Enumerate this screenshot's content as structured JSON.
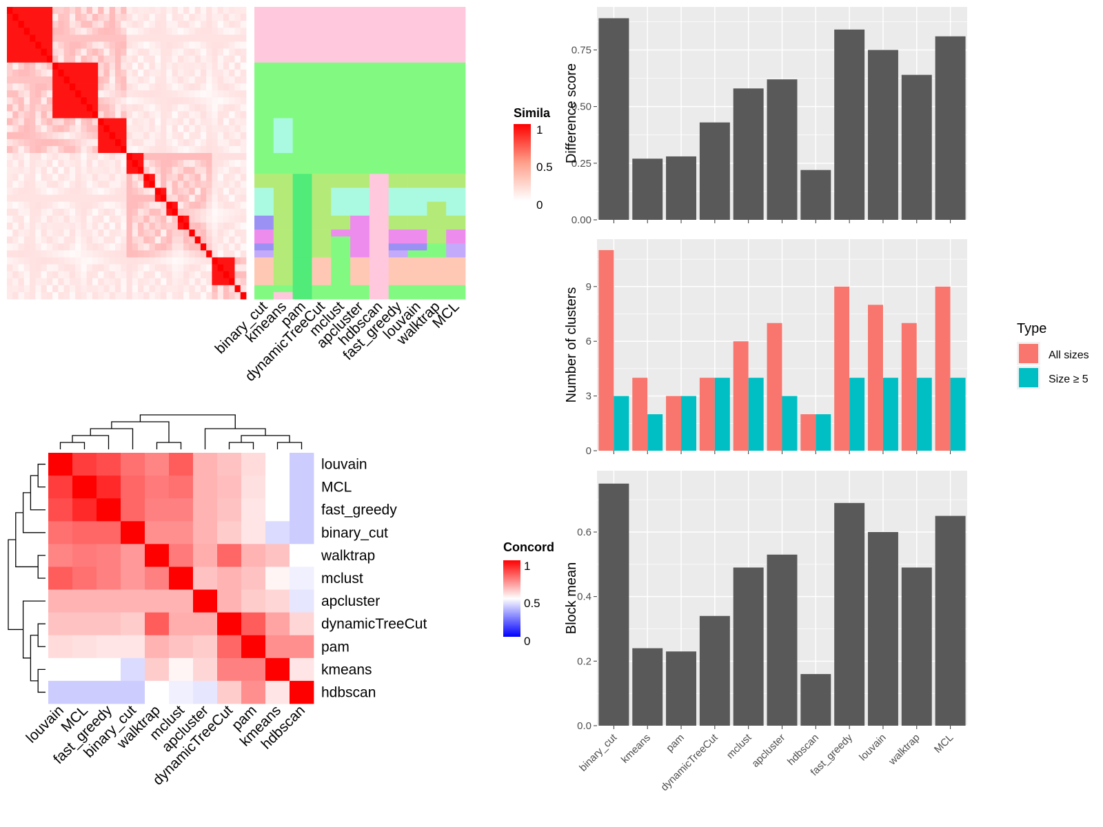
{
  "figure": {
    "similarity_legend": {
      "title": "Simila",
      "ticks": [
        "1",
        "0.5",
        "0"
      ]
    },
    "concordance_legend": {
      "title": "Concord",
      "ticks": [
        "1",
        "0.5",
        "0"
      ]
    },
    "type_legend": {
      "title": "Type",
      "items": [
        "All sizes",
        "Size ≥ 5"
      ],
      "colors": [
        "#F8766D",
        "#00BFC4"
      ]
    },
    "bar_color": "#595959",
    "panel_background": "#EBEBEB"
  },
  "chart_data": [
    {
      "id": "similarity_heatmap",
      "type": "heatmap",
      "color_scale": {
        "low": "#ffffff",
        "high": "#ff0000",
        "range": [
          0,
          1
        ]
      },
      "values": [],
      "blocks": [
        [
          0,
          2
        ],
        [
          3,
          5
        ],
        [
          6,
          7
        ],
        [
          8,
          8
        ],
        [
          9,
          9
        ],
        [
          10,
          10
        ],
        [
          11,
          11
        ],
        [
          12,
          12
        ],
        [
          13,
          13
        ],
        [
          14,
          14
        ],
        [
          15,
          15
        ],
        [
          16,
          16
        ],
        [
          17,
          18
        ],
        [
          19,
          19
        ],
        [
          20,
          20
        ]
      ],
      "block_sizes": [
        8,
        8,
        5,
        3,
        2,
        2,
        2,
        2,
        1,
        1,
        1,
        1,
        4,
        1,
        1
      ]
    },
    {
      "id": "cluster_assignments",
      "type": "heatmap",
      "columns": [
        "binary_cut",
        "kmeans",
        "pam",
        "dynamicTreeCut",
        "mclust",
        "apcluster",
        "hdbscan",
        "fast_greedy",
        "louvain",
        "walktrap",
        "MCL"
      ],
      "palette": [
        "#FFC8DC",
        "#82FA82",
        "#B4EB78",
        "#AAFAE1",
        "#9B91F5",
        "#EE8CEE",
        "#C3AAFA",
        "#FFC8B4",
        "#50EB78",
        "#DC8CE6"
      ],
      "assignments": [
        [
          0,
          0,
          0,
          0,
          0,
          0,
          0,
          0,
          0,
          0,
          0
        ],
        [
          1,
          1,
          1,
          1,
          1,
          1,
          1,
          1,
          1,
          1,
          1
        ],
        [
          1,
          3,
          1,
          1,
          1,
          1,
          1,
          1,
          1,
          1,
          1
        ],
        [
          1,
          1,
          1,
          1,
          1,
          1,
          1,
          1,
          1,
          1,
          1
        ],
        [
          2,
          2,
          8,
          2,
          2,
          2,
          0,
          2,
          2,
          2,
          2
        ],
        [
          3,
          2,
          8,
          2,
          3,
          3,
          0,
          3,
          3,
          3,
          3
        ],
        [
          3,
          2,
          8,
          2,
          3,
          3,
          0,
          3,
          3,
          2,
          3
        ],
        [
          4,
          2,
          8,
          2,
          2,
          5,
          0,
          2,
          2,
          2,
          2
        ],
        [
          5,
          2,
          8,
          2,
          5,
          5,
          0,
          5,
          5,
          2,
          5
        ],
        [
          5,
          2,
          8,
          2,
          1,
          5,
          0,
          5,
          5,
          2,
          5
        ],
        [
          4,
          2,
          8,
          2,
          1,
          5,
          0,
          4,
          4,
          1,
          6
        ],
        [
          6,
          2,
          8,
          2,
          1,
          5,
          0,
          6,
          1,
          1,
          6
        ],
        [
          7,
          2,
          8,
          7,
          1,
          7,
          0,
          7,
          7,
          7,
          7
        ],
        [
          1,
          1,
          8,
          1,
          1,
          1,
          0,
          1,
          1,
          1,
          1
        ],
        [
          1,
          0,
          8,
          1,
          1,
          1,
          0,
          1,
          1,
          1,
          1
        ],
        [
          1,
          0,
          8,
          1,
          1,
          4,
          0,
          1,
          1,
          1,
          1
        ]
      ],
      "row_blocks": [
        8,
        8,
        5,
        3,
        2,
        2,
        2,
        2,
        1,
        1,
        1,
        1,
        4,
        1,
        1
      ]
    },
    {
      "id": "concordance_heatmap",
      "type": "heatmap",
      "rows": [
        "louvain",
        "MCL",
        "fast_greedy",
        "binary_cut",
        "walktrap",
        "mclust",
        "apcluster",
        "dynamicTreeCut",
        "pam",
        "kmeans",
        "hdbscan"
      ],
      "columns": [
        "louvain",
        "MCL",
        "fast_greedy",
        "binary_cut",
        "walktrap",
        "mclust",
        "apcluster",
        "dynamicTreeCut",
        "pam",
        "kmeans",
        "hdbscan"
      ],
      "color_scale": {
        "low": "#0000ff",
        "mid": "#ffffff",
        "high": "#ff0000",
        "range": [
          0,
          1
        ]
      },
      "values": [
        [
          1.0,
          0.88,
          0.85,
          0.78,
          0.74,
          0.82,
          0.65,
          0.62,
          0.57,
          0.5,
          0.4
        ],
        [
          0.88,
          1.0,
          0.92,
          0.8,
          0.76,
          0.78,
          0.65,
          0.63,
          0.56,
          0.5,
          0.4
        ],
        [
          0.85,
          0.92,
          1.0,
          0.8,
          0.75,
          0.75,
          0.65,
          0.62,
          0.55,
          0.5,
          0.4
        ],
        [
          0.78,
          0.8,
          0.8,
          1.0,
          0.72,
          0.72,
          0.65,
          0.6,
          0.55,
          0.43,
          0.4
        ],
        [
          0.74,
          0.76,
          0.75,
          0.7,
          1.0,
          0.76,
          0.66,
          0.8,
          0.65,
          0.62,
          0.5
        ],
        [
          0.82,
          0.78,
          0.75,
          0.7,
          0.75,
          1.0,
          0.62,
          0.65,
          0.62,
          0.52,
          0.47
        ],
        [
          0.65,
          0.65,
          0.65,
          0.65,
          0.65,
          0.65,
          1.0,
          0.65,
          0.6,
          0.58,
          0.45
        ],
        [
          0.62,
          0.62,
          0.62,
          0.6,
          0.82,
          0.66,
          0.66,
          1.0,
          0.82,
          0.68,
          0.58
        ],
        [
          0.57,
          0.56,
          0.55,
          0.55,
          0.65,
          0.62,
          0.6,
          0.8,
          1.0,
          0.72,
          0.72
        ],
        [
          0.5,
          0.5,
          0.5,
          0.43,
          0.6,
          0.52,
          0.58,
          0.75,
          0.75,
          1.0,
          0.55
        ],
        [
          0.4,
          0.4,
          0.4,
          0.4,
          0.5,
          0.47,
          0.45,
          0.6,
          0.72,
          0.55,
          1.0
        ]
      ]
    },
    {
      "id": "difference_score",
      "type": "bar",
      "categories": [
        "binary_cut",
        "kmeans",
        "pam",
        "dynamicTreeCut",
        "mclust",
        "apcluster",
        "hdbscan",
        "fast_greedy",
        "louvain",
        "walktrap",
        "MCL"
      ],
      "values": [
        0.89,
        0.27,
        0.28,
        0.43,
        0.58,
        0.62,
        0.22,
        0.84,
        0.75,
        0.64,
        0.81
      ],
      "ylabel": "Difference score",
      "ylim": [
        0,
        0.94
      ],
      "yticks": [
        0.0,
        0.25,
        0.5,
        0.75
      ],
      "ytick_labels": [
        "0.00",
        "0.25",
        "0.50",
        "0.75"
      ],
      "grid": true
    },
    {
      "id": "number_of_clusters",
      "type": "bar",
      "categories": [
        "binary_cut",
        "kmeans",
        "pam",
        "dynamicTreeCut",
        "mclust",
        "apcluster",
        "hdbscan",
        "fast_greedy",
        "louvain",
        "walktrap",
        "MCL"
      ],
      "series": [
        {
          "name": "All sizes",
          "values": [
            11,
            4,
            3,
            4,
            6,
            7,
            2,
            9,
            8,
            7,
            9
          ]
        },
        {
          "name": "Size ≥ 5",
          "values": [
            3,
            2,
            3,
            4,
            4,
            3,
            2,
            4,
            4,
            4,
            4
          ]
        }
      ],
      "ylabel": "Number of clusters",
      "ylim": [
        0,
        11.6
      ],
      "yticks": [
        0,
        3,
        6,
        9
      ],
      "ytick_labels": [
        "0",
        "3",
        "6",
        "9"
      ],
      "legend": "right",
      "grid": true
    },
    {
      "id": "block_mean",
      "type": "bar",
      "categories": [
        "binary_cut",
        "kmeans",
        "pam",
        "dynamicTreeCut",
        "mclust",
        "apcluster",
        "hdbscan",
        "fast_greedy",
        "louvain",
        "walktrap",
        "MCL"
      ],
      "values": [
        0.75,
        0.24,
        0.23,
        0.34,
        0.49,
        0.53,
        0.16,
        0.69,
        0.6,
        0.49,
        0.65
      ],
      "ylabel": "Block mean",
      "ylim": [
        0,
        0.79
      ],
      "yticks": [
        0.0,
        0.2,
        0.4,
        0.6
      ],
      "ytick_labels": [
        "0.0",
        "0.2",
        "0.4",
        "0.6"
      ],
      "grid": true
    }
  ]
}
